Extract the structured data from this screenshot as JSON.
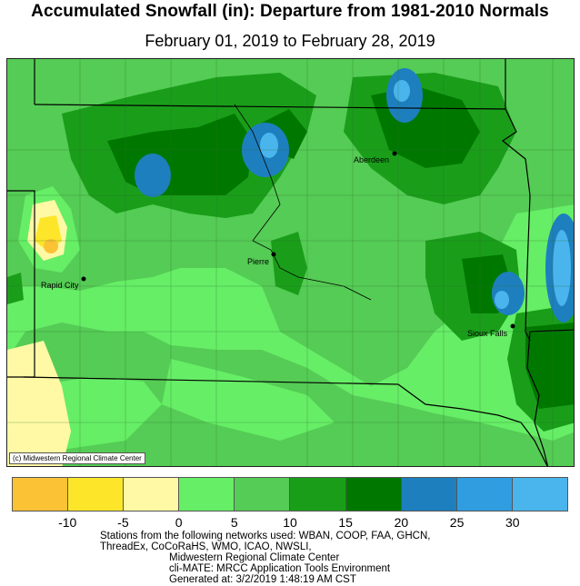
{
  "title": "Accumulated Snowfall (in): Departure from 1981-2010 Normals",
  "subtitle": "February 01, 2019 to February 28, 2019",
  "map": {
    "credit": "(c) Midwestern Regional Climate Center",
    "cities": [
      {
        "name": "Aberdeen"
      },
      {
        "name": "Pierre"
      },
      {
        "name": "Rapid City"
      },
      {
        "name": "Sioux Falls"
      }
    ]
  },
  "legend": {
    "colors": [
      "#fcc235",
      "#fde62a",
      "#fff9a5",
      "#66ee66",
      "#55cc55",
      "#1a9e1a",
      "#007800",
      "#1e7fbf",
      "#2f9de0",
      "#4ab4ec"
    ],
    "ticks": [
      "-10",
      "-5",
      "0",
      "5",
      "10",
      "15",
      "20",
      "25",
      "30"
    ]
  },
  "footer": {
    "line1": "Stations from the following networks used: WBAN, COOP, FAA, GHCN,",
    "line2": "ThreadEx, CoCoRaHS, WMO, ICAO, NWSLI,",
    "line3": "Midwestern Regional Climate Center",
    "line4": "cli-MATE: MRCC Application Tools Environment",
    "line5": "Generated at: 3/2/2019 1:48:19 AM CST"
  }
}
